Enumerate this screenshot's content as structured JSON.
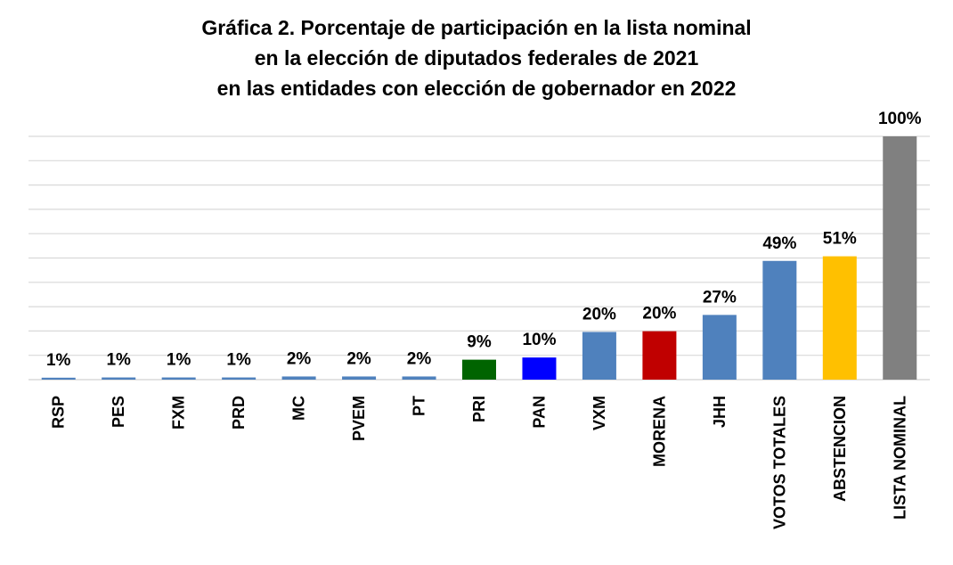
{
  "chart_data": {
    "type": "bar",
    "title_lines": [
      "Gráfica 2. Porcentaje de participación en la lista nominal",
      "en la elección de diputados federales de 2021",
      "en las entidades con elección de gobernador en 2022"
    ],
    "xlabel": "",
    "ylabel": "",
    "ylim": [
      0,
      100
    ],
    "grid": true,
    "legend": "none",
    "categories": [
      "RSP",
      "PES",
      "FXM",
      "PRD",
      "MC",
      "PVEM",
      "PT",
      "PRI",
      "PAN",
      "VXM",
      "MORENA",
      "JHH",
      "VOTOS TOTALES",
      "ABSTENCION",
      "LISTA NOMINAL"
    ],
    "values": [
      1,
      1,
      1,
      1,
      2,
      2,
      2,
      9,
      10,
      20,
      20,
      27,
      49,
      51,
      100
    ],
    "bar_heights_estimated": [
      0.8,
      0.9,
      0.9,
      0.9,
      1.3,
      1.3,
      1.3,
      8.2,
      9.1,
      19.6,
      19.9,
      26.6,
      48.8,
      50.7,
      100
    ],
    "data_labels": [
      "1%",
      "1%",
      "1%",
      "1%",
      "2%",
      "2%",
      "2%",
      "9%",
      "10%",
      "20%",
      "20%",
      "27%",
      "49%",
      "51%",
      "100%"
    ],
    "colors": [
      "#4f81bd",
      "#4f81bd",
      "#4f81bd",
      "#4f81bd",
      "#4f81bd",
      "#4f81bd",
      "#4f81bd",
      "#006400",
      "#0000ff",
      "#4f81bd",
      "#c00000",
      "#4f81bd",
      "#4f81bd",
      "#ffc000",
      "#808080"
    ],
    "gridline_color": "#d9d9d9"
  }
}
